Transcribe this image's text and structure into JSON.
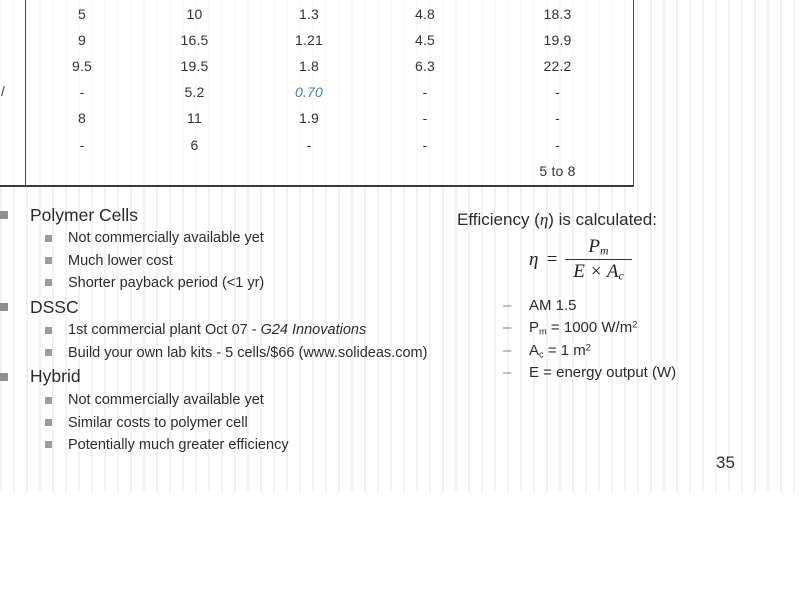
{
  "slide": {
    "page_number": "35"
  },
  "table": {
    "cutoff_row_label": "/",
    "rows": [
      [
        "5",
        "10",
        "1.3",
        "4.8",
        "18.3"
      ],
      [
        "9",
        "16.5",
        "1.21",
        "4.5",
        "19.9"
      ],
      [
        "9.5",
        "19.5",
        "1.8",
        "6.3",
        "22.2"
      ],
      [
        "-",
        "5.2",
        "0.70",
        "-",
        "-"
      ],
      [
        "8",
        "11",
        "1.9",
        "-",
        "-"
      ],
      [
        "-",
        "6",
        "-",
        "-",
        "-"
      ],
      [
        "",
        "",
        "",
        "",
        "5 to 8"
      ]
    ],
    "highlight_cell": {
      "row_index": 3,
      "col_index": 2,
      "color": "#4e80ad"
    }
  },
  "bullet_sections": [
    {
      "title": "Polymer Cells",
      "items": [
        {
          "segs": [
            {
              "t": "Not commercially available yet"
            }
          ]
        },
        {
          "segs": [
            {
              "t": "Much lower cost"
            }
          ]
        },
        {
          "segs": [
            {
              "t": "Shorter payback period (<1 yr)"
            }
          ]
        }
      ]
    },
    {
      "title": "DSSC",
      "items": [
        {
          "segs": [
            {
              "t": "1st commercial plant Oct 07 - "
            },
            {
              "t": "G24 Innovations",
              "italic": true
            }
          ]
        },
        {
          "segs": [
            {
              "t": "Build your own lab kits - 5 cells/$66 (www.solideas.com)"
            }
          ]
        }
      ]
    },
    {
      "title": "Hybrid",
      "items": [
        {
          "segs": [
            {
              "t": "Not commercially available yet"
            }
          ]
        },
        {
          "segs": [
            {
              "t": "Similar costs to polymer cell"
            }
          ]
        },
        {
          "segs": [
            {
              "t": "Potentially much greater efficiency"
            }
          ]
        }
      ]
    }
  ],
  "efficiency_panel": {
    "title_pre": "Efficiency (",
    "title_eta": "η",
    "title_post": ") is calculated:",
    "formula": {
      "lhs": "η",
      "equals": "=",
      "numerator_main": "P",
      "numerator_sub": "m",
      "denominator_main": "E × A",
      "denominator_sub": "c"
    },
    "bullet_char": "–",
    "notes": [
      {
        "segs": [
          {
            "t": "AM 1.5"
          }
        ]
      },
      {
        "segs": [
          {
            "t": "P"
          },
          {
            "t": "m",
            "sub": true
          },
          {
            "t": " = 1000 W/m"
          },
          {
            "t": "2",
            "sup": true
          }
        ]
      },
      {
        "segs": [
          {
            "t": "A"
          },
          {
            "t": "c",
            "sub": true
          },
          {
            "t": " = 1 m"
          },
          {
            "t": "2",
            "sup": true
          }
        ]
      },
      {
        "segs": [
          {
            "t": "E = energy output (W)"
          }
        ]
      }
    ]
  },
  "colors": {
    "accent_blue": "#4e80ad",
    "table_border": "#4a4a4a",
    "bullet_gray": "#9c9c9c"
  }
}
